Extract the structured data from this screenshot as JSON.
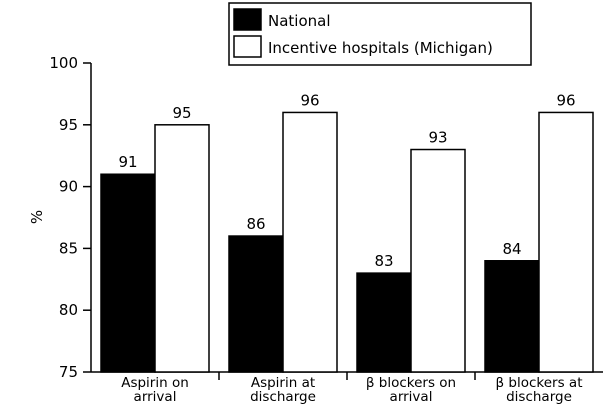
{
  "chart_data": {
    "type": "bar",
    "categories": [
      [
        "Aspirin on",
        "arrival"
      ],
      [
        "Aspirin at",
        "discharge"
      ],
      [
        "β blockers on",
        "arrival"
      ],
      [
        "β blockers at",
        "discharge"
      ]
    ],
    "series": [
      {
        "name": "National",
        "values": [
          91,
          86,
          83,
          84
        ],
        "color": "#000000"
      },
      {
        "name": "Incentive hospitals (Michigan)",
        "values": [
          95,
          96,
          93,
          96
        ],
        "color": "#ffffff"
      }
    ],
    "ylabel": "%",
    "ylim": [
      75,
      100
    ],
    "yticks": [
      75,
      80,
      85,
      90,
      95,
      100
    ],
    "legend_position": "top-center",
    "grid": false,
    "data_labels": true
  }
}
